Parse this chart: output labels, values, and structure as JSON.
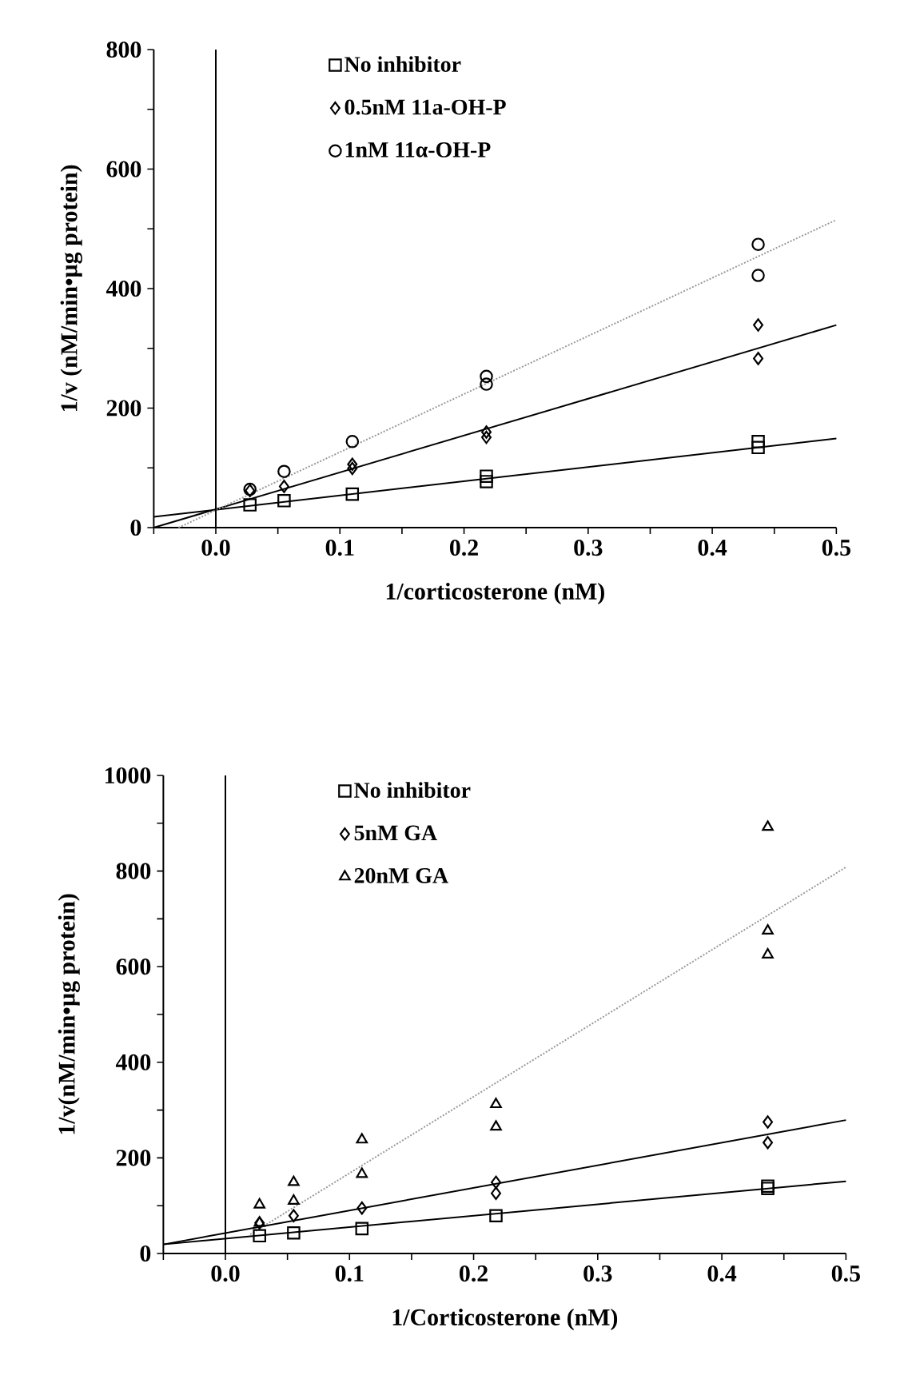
{
  "chart_data": [
    {
      "type": "scatter",
      "xlabel": "1/corticosterone  (nM)",
      "ylabel": "1/v  (nM/min•µg protein)",
      "xlim": [
        -0.05,
        0.5
      ],
      "ylim": [
        0,
        800
      ],
      "xticks": [
        {
          "value": -0.05,
          "label": null
        },
        {
          "value": 0,
          "label": "0.0"
        },
        {
          "value": 0.05,
          "label": null
        },
        {
          "value": 0.1,
          "label": "0.1"
        },
        {
          "value": 0.15,
          "label": null
        },
        {
          "value": 0.2,
          "label": "0.2"
        },
        {
          "value": 0.25,
          "label": null
        },
        {
          "value": 0.3,
          "label": "0.3"
        },
        {
          "value": 0.35,
          "label": null
        },
        {
          "value": 0.4,
          "label": "0.4"
        },
        {
          "value": 0.45,
          "label": null
        },
        {
          "value": 0.5,
          "label": "0.5"
        }
      ],
      "yticks": [
        0,
        {
          "value": 100,
          "label": null
        },
        200,
        {
          "value": 300,
          "label": null
        },
        400,
        {
          "value": 500,
          "label": null
        },
        600,
        {
          "value": 700,
          "label": null
        },
        800
      ],
      "legend": "top",
      "ref_lines": [
        {
          "axis": "x",
          "value": 0,
          "color": "#000000"
        }
      ],
      "series": [
        {
          "name": "No  inhibitor",
          "marker": "square",
          "color": "#000000",
          "x": [
            0.0275,
            0.055,
            0.11,
            0.218,
            0.218,
            0.437,
            0.437
          ],
          "values": [
            38,
            45,
            56,
            86,
            77,
            144,
            134
          ]
        },
        {
          "name": "0.5nM  11**a**-OH-P",
          "marker": "diamond",
          "color": "#000000",
          "x": [
            0.0275,
            0.055,
            0.11,
            0.11,
            0.218,
            0.218,
            0.437,
            0.437
          ],
          "values": [
            62,
            69,
            106,
            99,
            160,
            151,
            339,
            283
          ]
        },
        {
          "name": "1nM  11α-OH-P",
          "marker": "circle",
          "color": "#000000",
          "x": [
            0.0275,
            0.055,
            0.11,
            0.218,
            0.218,
            0.437,
            0.437
          ],
          "values": [
            64,
            94,
            144,
            253,
            240,
            474,
            422
          ]
        },
        {
          "type": "line",
          "line_style": "solid",
          "color": "#000000",
          "x": [
            -0.05,
            0.5
          ],
          "values": [
            18,
            149
          ]
        },
        {
          "type": "line",
          "line_style": "solid",
          "color": "#000000",
          "x": [
            -0.05,
            0.5
          ],
          "values": [
            0,
            339
          ]
        },
        {
          "type": "line",
          "line_style": "dotted",
          "color": "#999999",
          "x": [
            -0.03,
            0.5
          ],
          "values": [
            0,
            515
          ]
        }
      ]
    },
    {
      "type": "scatter",
      "xlabel": "1/Corticosterone  (nM)",
      "ylabel": "1/v(nM/min•µg  protein)",
      "xlim": [
        -0.05,
        0.5
      ],
      "ylim": [
        0,
        1000
      ],
      "xticks": [
        {
          "value": -0.05,
          "label": null
        },
        {
          "value": 0,
          "label": "0.0"
        },
        {
          "value": 0.05,
          "label": null
        },
        {
          "value": 0.1,
          "label": "0.1"
        },
        {
          "value": 0.15,
          "label": null
        },
        {
          "value": 0.2,
          "label": "0.2"
        },
        {
          "value": 0.25,
          "label": null
        },
        {
          "value": 0.3,
          "label": "0.3"
        },
        {
          "value": 0.35,
          "label": null
        },
        {
          "value": 0.4,
          "label": "0.4"
        },
        {
          "value": 0.45,
          "label": null
        },
        {
          "value": 0.5,
          "label": "0.5"
        }
      ],
      "yticks": [
        0,
        {
          "value": 100,
          "label": null
        },
        200,
        {
          "value": 300,
          "label": null
        },
        400,
        {
          "value": 500,
          "label": null
        },
        600,
        {
          "value": 700,
          "label": null
        },
        800,
        {
          "value": 900,
          "label": null
        },
        1000
      ],
      "legend": "top",
      "ref_lines": [
        {
          "axis": "x",
          "value": 0,
          "color": "#000000"
        }
      ],
      "series": [
        {
          "name": "No  inhibitor",
          "marker": "square",
          "color": "#000000",
          "x": [
            0.0275,
            0.055,
            0.11,
            0.218,
            0.437,
            0.437
          ],
          "values": [
            37,
            43,
            52,
            79,
            136,
            141
          ]
        },
        {
          "name": "5nM  GA",
          "marker": "diamond",
          "color": "#000000",
          "x": [
            0.0275,
            0.055,
            0.11,
            0.218,
            0.218,
            0.437,
            0.437
          ],
          "values": [
            64,
            79,
            95,
            149,
            126,
            275,
            232
          ]
        },
        {
          "name": "20nM  GA",
          "marker": "triangle",
          "color": "#000000",
          "x": [
            0.0275,
            0.0275,
            0.055,
            0.055,
            0.11,
            0.11,
            0.218,
            0.218,
            0.437,
            0.437,
            0.437
          ],
          "values": [
            102,
            64,
            149,
            110,
            238,
            166,
            312,
            265,
            892,
            675,
            625
          ]
        },
        {
          "type": "line",
          "line_style": "solid",
          "color": "#000000",
          "x": [
            -0.05,
            0.5
          ],
          "values": [
            19,
            151
          ]
        },
        {
          "type": "line",
          "line_style": "solid",
          "color": "#000000",
          "x": [
            -0.05,
            0.5
          ],
          "values": [
            19,
            279
          ]
        },
        {
          "type": "line",
          "line_style": "dotted",
          "color": "#999999",
          "x": [
            0.02,
            0.5
          ],
          "values": [
            40,
            808
          ]
        }
      ]
    }
  ]
}
